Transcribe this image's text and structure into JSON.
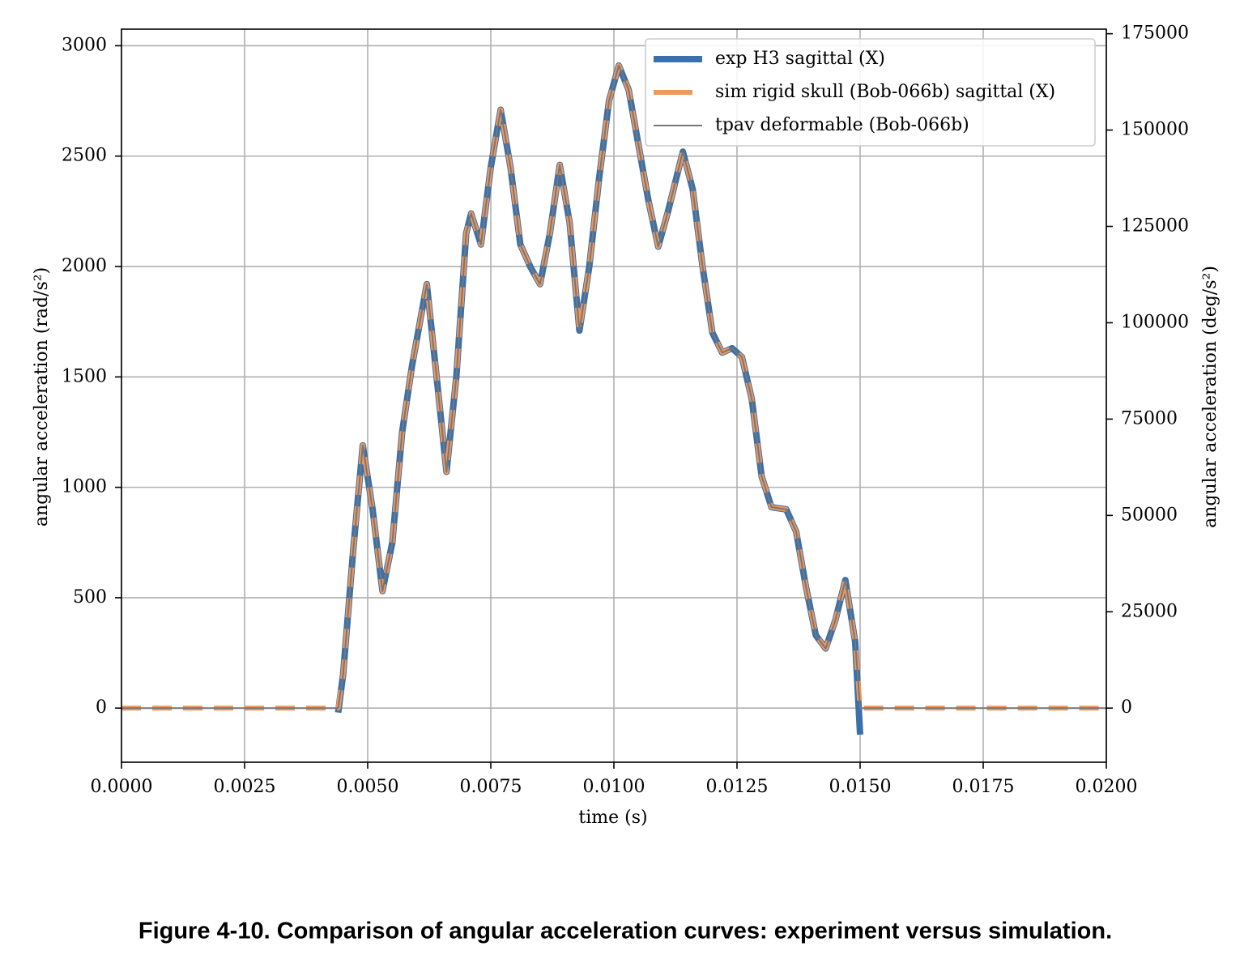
{
  "chart_data": {
    "type": "line",
    "caption": "Figure 4-10. Comparison of angular acceleration curves: experiment versus simulation.",
    "xlabel": "time (s)",
    "ylabel": "angular acceleration (rad/s²)",
    "y2label": "angular acceleration (deg/s²)",
    "xlim": [
      0,
      0.02
    ],
    "ylim": [
      -245,
      3075
    ],
    "y2lim": [
      -14037,
      176185
    ],
    "xticks": [
      {
        "value": 0,
        "label": "0.0000"
      },
      {
        "value": 0.0025,
        "label": "0.0025"
      },
      {
        "value": 0.005,
        "label": "0.0050"
      },
      {
        "value": 0.0075,
        "label": "0.0075"
      },
      {
        "value": 0.01,
        "label": "0.0100"
      },
      {
        "value": 0.0125,
        "label": "0.0125"
      },
      {
        "value": 0.015,
        "label": "0.0150"
      },
      {
        "value": 0.0175,
        "label": "0.0175"
      },
      {
        "value": 0.02,
        "label": "0.0200"
      }
    ],
    "yticks": [
      0,
      500,
      1000,
      1500,
      2000,
      2500,
      3000
    ],
    "y2ticks": [
      0,
      25000,
      50000,
      75000,
      100000,
      125000,
      150000,
      175000
    ],
    "grid": true,
    "legend": "upper right",
    "x": [
      0,
      0.0044,
      0.0045,
      0.0047,
      0.0049,
      0.0051,
      0.0053,
      0.0055,
      0.0057,
      0.0059,
      0.0062,
      0.0064,
      0.0066,
      0.0068,
      0.007,
      0.0071,
      0.0073,
      0.0075,
      0.0077,
      0.0079,
      0.0081,
      0.0083,
      0.0085,
      0.0087,
      0.0089,
      0.0091,
      0.0093,
      0.0095,
      0.0097,
      0.0099,
      0.0101,
      0.0103,
      0.0105,
      0.0107,
      0.0109,
      0.0111,
      0.0114,
      0.0116,
      0.0118,
      0.012,
      0.0122,
      0.0124,
      0.0126,
      0.0128,
      0.013,
      0.0132,
      0.0135,
      0.0137,
      0.0139,
      0.0141,
      0.0143,
      0.0145,
      0.0147,
      0.0149,
      0.015,
      0.02
    ],
    "series": [
      {
        "name": "exp H3 sagittal (X)",
        "color": "#3a70ab",
        "width": 8,
        "dash": "",
        "values": [
          null,
          -20,
          150,
          700,
          1190,
          900,
          530,
          750,
          1250,
          1550,
          1920,
          1500,
          1070,
          1500,
          2150,
          2240,
          2100,
          2450,
          2710,
          2450,
          2100,
          2000,
          1920,
          2150,
          2460,
          2200,
          1710,
          2000,
          2400,
          2750,
          2910,
          2800,
          2550,
          2300,
          2090,
          2250,
          2520,
          2350,
          2000,
          1700,
          1610,
          1630,
          1590,
          1400,
          1050,
          910,
          900,
          800,
          550,
          330,
          270,
          400,
          580,
          300,
          -120,
          null
        ]
      },
      {
        "name": "sim rigid skull (Bob-066b) sagittal (X)",
        "color": "#f0975a",
        "width": 6,
        "dash": "24 14",
        "values": [
          0,
          0,
          150,
          700,
          1190,
          900,
          530,
          750,
          1250,
          1550,
          1920,
          1500,
          1070,
          1500,
          2150,
          2240,
          2100,
          2450,
          2710,
          2450,
          2100,
          2000,
          1920,
          2150,
          2460,
          2200,
          1710,
          2000,
          2400,
          2750,
          2910,
          2800,
          2550,
          2300,
          2090,
          2250,
          2520,
          2350,
          2000,
          1700,
          1610,
          1630,
          1590,
          1400,
          1050,
          910,
          900,
          800,
          550,
          330,
          270,
          400,
          580,
          300,
          0,
          0
        ]
      },
      {
        "name": "tpav deformable (Bob-066b)",
        "color": "#777777",
        "width": 2,
        "dash": "",
        "values": [
          0,
          0,
          150,
          700,
          1190,
          900,
          530,
          750,
          1250,
          1550,
          1920,
          1500,
          1070,
          1500,
          2150,
          2240,
          2100,
          2450,
          2710,
          2450,
          2100,
          2000,
          1920,
          2150,
          2460,
          2200,
          1710,
          2000,
          2400,
          2750,
          2910,
          2800,
          2550,
          2300,
          2090,
          2250,
          2520,
          2350,
          2000,
          1700,
          1610,
          1630,
          1590,
          1400,
          1050,
          910,
          900,
          800,
          550,
          330,
          270,
          400,
          580,
          300,
          0,
          0
        ]
      }
    ]
  }
}
